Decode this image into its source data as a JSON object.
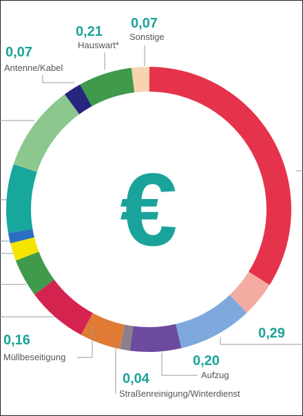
{
  "chart_data": {
    "type": "pie",
    "donut": true,
    "center_label": "€",
    "categories": [
      "Sonstige",
      null,
      null,
      null,
      "Aufzug",
      "Straßenreinigung/Winterdienst",
      "Müllbeseitigung",
      null,
      null,
      null,
      null,
      null,
      null,
      "Antenne/Kabel",
      "Hauswart*"
    ],
    "values": [
      0.07,
      1.17,
      0.14,
      0.29,
      0.2,
      0.04,
      0.16,
      0.24,
      0.15,
      0.07,
      0.04,
      0.27,
      0.34,
      0.07,
      0.21
    ],
    "value_labels": [
      "0,07",
      null,
      null,
      "0,29",
      "0,20",
      "0,04",
      "0,16",
      null,
      null,
      null,
      null,
      null,
      null,
      "0,07",
      "0,21"
    ],
    "colors": [
      "#f9d3b0",
      "#e5334b",
      "#f4aca2",
      "#7fa9dd",
      "#6c4b9e",
      "#8a7f8d",
      "#e07a35",
      "#d4234f",
      "#3f9a4b",
      "#f5e400",
      "#2c6ec1",
      "#17a79c",
      "#8cc88e",
      "#27267f",
      "#3f9a4b"
    ]
  }
}
